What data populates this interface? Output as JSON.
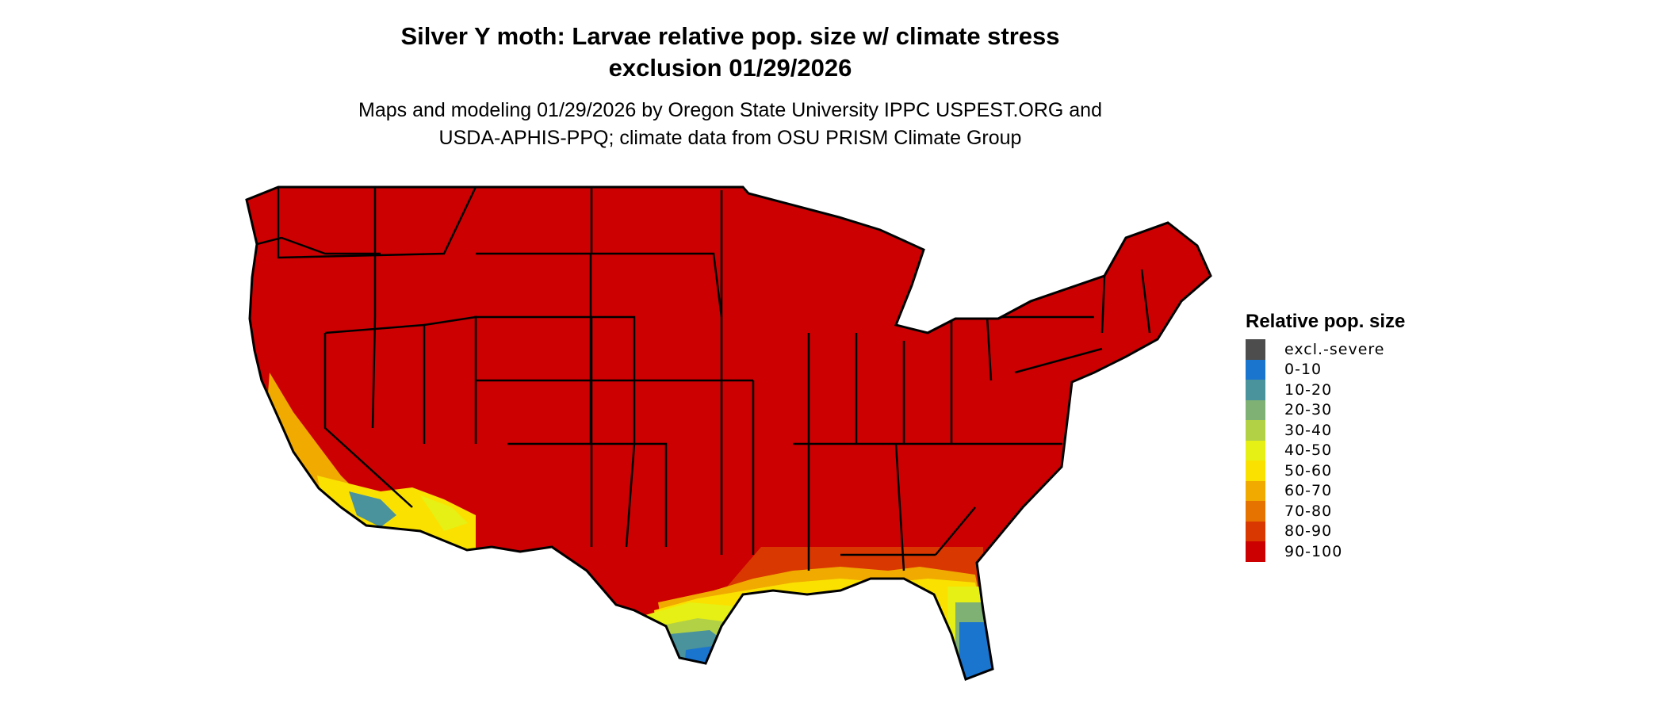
{
  "title": {
    "line1": "Silver Y moth: Larvae relative pop. size w/ climate stress",
    "line2": "exclusion 01/29/2026"
  },
  "subtitle": {
    "line1": "Maps and modeling 01/29/2026 by Oregon State University IPPC USPEST.ORG and",
    "line2": "USDA-APHIS-PPQ; climate data from OSU PRISM Climate Group"
  },
  "chart_data": {
    "type": "heatmap",
    "region": "Contiguous United States",
    "dominant_class": "90-100",
    "legend": {
      "title": "Relative pop. size",
      "placement": "right",
      "items": [
        {
          "label": "excl.-severe",
          "color": "#4d4d4d"
        },
        {
          "label": "0-10",
          "color": "#1a75cf"
        },
        {
          "label": "10-20",
          "color": "#4a929c"
        },
        {
          "label": "20-30",
          "color": "#7fb174"
        },
        {
          "label": "30-40",
          "color": "#b3d145"
        },
        {
          "label": "40-50",
          "color": "#e6f014"
        },
        {
          "label": "50-60",
          "color": "#fae100"
        },
        {
          "label": "60-70",
          "color": "#f0aa00"
        },
        {
          "label": "70-80",
          "color": "#e67300"
        },
        {
          "label": "80-90",
          "color": "#d93800"
        },
        {
          "label": "90-100",
          "color": "#cc0000"
        }
      ]
    }
  }
}
